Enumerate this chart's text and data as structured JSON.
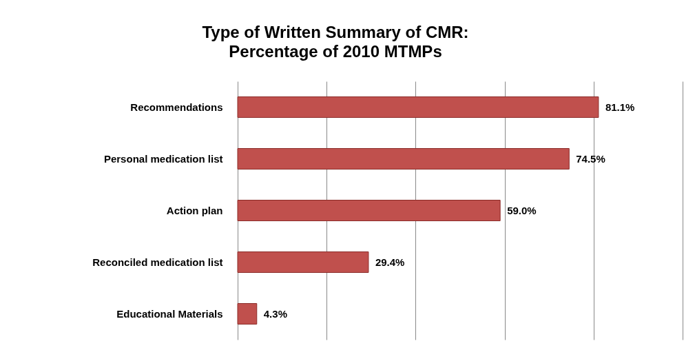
{
  "chart_data": {
    "type": "bar",
    "orientation": "horizontal",
    "title": "Type of Written Summary of CMR:\nPercentage of 2010 MTMPs",
    "categories": [
      "Recommendations",
      "Personal medication list",
      "Action plan",
      "Reconciled medication list",
      "Educational Materials"
    ],
    "values": [
      81.1,
      74.5,
      59.0,
      29.4,
      4.3
    ],
    "value_labels": [
      "81.1%",
      "74.5%",
      "59.0%",
      "29.4%",
      "4.3%"
    ],
    "color": "#c0504d",
    "xlim": [
      0,
      100
    ],
    "xticks": [
      {
        "value": 0,
        "label": null
      },
      {
        "value": 20,
        "label": null
      },
      {
        "value": 40,
        "label": null
      },
      {
        "value": 60,
        "label": null
      },
      {
        "value": 80,
        "label": null
      },
      {
        "value": 100,
        "label": null
      }
    ],
    "tick_labels": "y",
    "grid": "x"
  }
}
